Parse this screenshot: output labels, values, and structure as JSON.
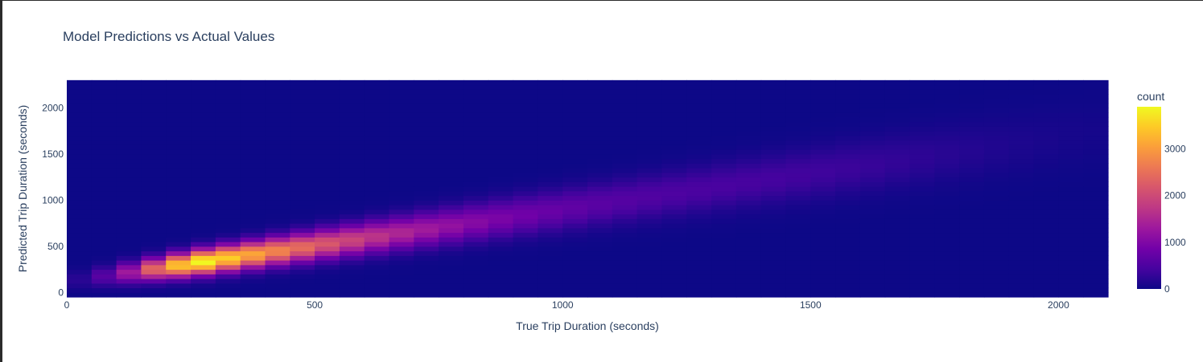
{
  "chart_data": {
    "type": "heatmap",
    "title": "Model Predictions vs Actual Values",
    "xlabel": "True Trip Duration (seconds)",
    "ylabel": "Predicted Trip Duration (seconds)",
    "xlim": [
      0,
      2100
    ],
    "ylim": [
      -50,
      2290
    ],
    "x_ticks": [
      0,
      500,
      1000,
      1500,
      2000
    ],
    "y_ticks": [
      0,
      500,
      1000,
      1500,
      2000
    ],
    "x_bin_size": 50,
    "y_bin_size": 50,
    "x_bins_start": 0,
    "x_bins_count": 42,
    "y_bins_start": -50,
    "y_bins_count": 47,
    "colorbar": {
      "title": "count",
      "range": [
        0,
        3900
      ],
      "ticks": [
        0,
        1000,
        2000,
        3000
      ],
      "colorscale": [
        "#0d0887",
        "#46039f",
        "#7201a8",
        "#9c179e",
        "#bd3786",
        "#d8576b",
        "#ed7953",
        "#fb9f3a",
        "#fdca26",
        "#f0f921"
      ]
    },
    "density_model": {
      "peak_count": 3900,
      "peak_x": 280,
      "ridge_slope": 0.78,
      "ridge_intercept": 120
    }
  }
}
